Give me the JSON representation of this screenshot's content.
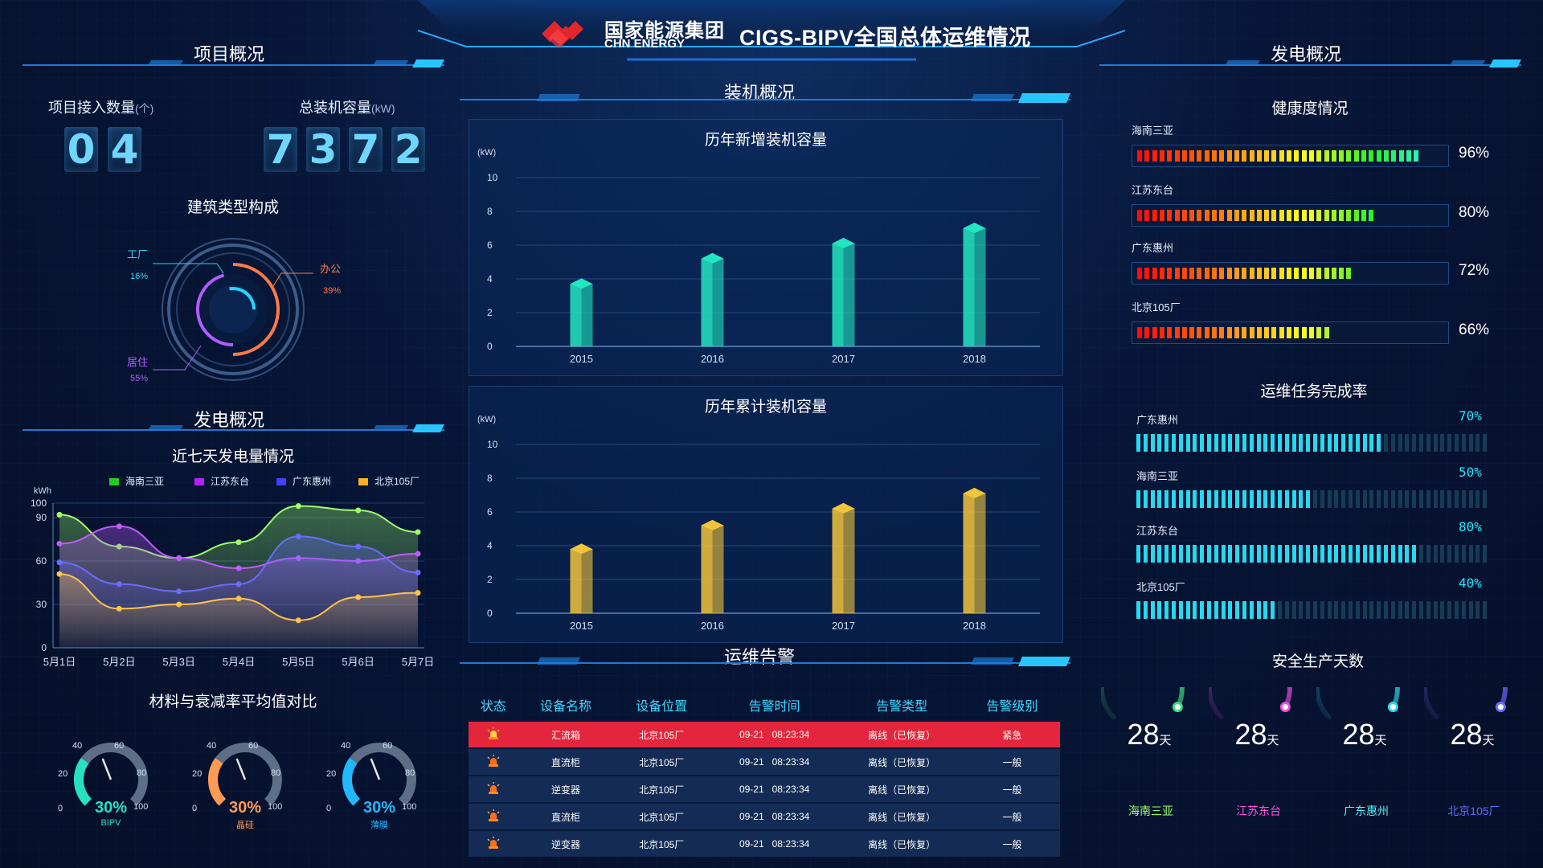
{
  "header": {
    "brand_cn": "国家能源集团",
    "brand_en": "CHN ENERGY",
    "title": "CIGS-BIPV全国总体运维情况"
  },
  "left": {
    "project_overview_title": "项目概况",
    "project_count_label": "项目接入数量",
    "project_count_unit": "(个)",
    "project_count_digits": [
      "0",
      "4"
    ],
    "capacity_label": "总装机容量",
    "capacity_unit": "(kW)",
    "capacity_digits": [
      "7",
      "3",
      "7",
      "2"
    ],
    "building_type_title": "建筑类型构成",
    "building_types": [
      {
        "name": "工厂",
        "percent": 16,
        "pct_label": "16%",
        "color": "#27d6ff"
      },
      {
        "name": "办公",
        "percent": 39,
        "pct_label": "39%",
        "color": "#ff7a45"
      },
      {
        "name": "居住",
        "percent": 55,
        "pct_label": "55%",
        "color": "#b15cff"
      }
    ],
    "power_overview_title": "发电概况",
    "week_chart_title": "近七天发电量情况",
    "materials_title": "材料与衰减率平均值对比",
    "gauges": [
      {
        "name": "BIPV",
        "value": 30,
        "pct_label": "30%",
        "color": "#26e0c2"
      },
      {
        "name": "晶硅",
        "value": 30,
        "pct_label": "30%",
        "color": "#ff9a55"
      },
      {
        "name": "薄膜",
        "value": 30,
        "pct_label": "30%",
        "color": "#22b8ff"
      }
    ],
    "gauge_ticks": [
      "0",
      "20",
      "40",
      "60",
      "80",
      "100"
    ]
  },
  "center": {
    "install_title": "装机概况",
    "alarm_title": "运维告警",
    "alarm_headers": [
      "状态",
      "设备名称",
      "设备位置",
      "告警时间",
      "告警类型",
      "告警级别"
    ],
    "alarms": [
      {
        "device": "汇流箱",
        "location": "北京105厂",
        "time": "09-21   08:23:34",
        "type": "离线（已恢复）",
        "level": "紧急",
        "urgent": true
      },
      {
        "device": "直流柜",
        "location": "北京105厂",
        "time": "09-21   08:23:34",
        "type": "离线（已恢复）",
        "level": "一般",
        "urgent": false
      },
      {
        "device": "逆变器",
        "location": "北京105厂",
        "time": "09-21   08:23:34",
        "type": "离线（已恢复）",
        "level": "一般",
        "urgent": false
      },
      {
        "device": "直流柜",
        "location": "北京105厂",
        "time": "09-21   08:23:34",
        "type": "离线（已恢复）",
        "level": "一般",
        "urgent": false
      },
      {
        "device": "逆变器",
        "location": "北京105厂",
        "time": "09-21   08:23:34",
        "type": "离线（已恢复）",
        "level": "一般",
        "urgent": false
      }
    ]
  },
  "right": {
    "power_title": "发电概况",
    "health_title": "健康度情况",
    "health": [
      {
        "name": "海南三亚",
        "value": 96,
        "label": "96%"
      },
      {
        "name": "江苏东台",
        "value": 80,
        "label": "80%"
      },
      {
        "name": "广东惠州",
        "value": 72,
        "label": "72%"
      },
      {
        "name": "北京105厂",
        "value": 66,
        "label": "66%"
      }
    ],
    "task_title": "运维任务完成率",
    "tasks": [
      {
        "name": "广东惠州",
        "value": 70,
        "label": "70%"
      },
      {
        "name": "海南三亚",
        "value": 50,
        "label": "50%"
      },
      {
        "name": "江苏东台",
        "value": 80,
        "label": "80%"
      },
      {
        "name": "北京105厂",
        "value": 40,
        "label": "40%"
      }
    ],
    "safety_title": "安全生产天数",
    "safety_unit": "天",
    "safety": [
      {
        "name": "海南三亚",
        "days": "28",
        "color": "#9dff6a",
        "ring": "#3ddc84"
      },
      {
        "name": "江苏东台",
        "days": "28",
        "color": "#ff4fd8",
        "ring": "#e24fe0"
      },
      {
        "name": "广东惠州",
        "days": "28",
        "color": "#56f0ff",
        "ring": "#2fd9e8"
      },
      {
        "name": "北京105厂",
        "days": "28",
        "color": "#5c6cff",
        "ring": "#6b6bff"
      }
    ]
  },
  "chart_data": [
    {
      "type": "bar",
      "title": "历年新增装机容量",
      "ylabel": "(kW)",
      "categories": [
        "2015",
        "2016",
        "2017",
        "2018"
      ],
      "values": [
        3.7,
        5.2,
        6.1,
        7.0
      ],
      "ylim": [
        0,
        10
      ],
      "yticks": [
        "0",
        "2",
        "4",
        "6",
        "8",
        "10"
      ],
      "color": "#22e6c0"
    },
    {
      "type": "bar",
      "title": "历年累计装机容量",
      "ylabel": "(kW)",
      "categories": [
        "2015",
        "2016",
        "2017",
        "2018"
      ],
      "values": [
        3.8,
        5.2,
        6.2,
        7.1
      ],
      "ylim": [
        0,
        10
      ],
      "yticks": [
        "0",
        "2",
        "4",
        "6",
        "8",
        "10"
      ],
      "color": "#f1c43a"
    },
    {
      "type": "area",
      "title": "近七天发电量情况",
      "ylabel": "kWh",
      "categories": [
        "5月1日",
        "5月2日",
        "5月3日",
        "5月4日",
        "5月5日",
        "5月6日",
        "5月7日"
      ],
      "yticks": [
        "0",
        "30",
        "60",
        "90",
        "100"
      ],
      "ylim": [
        0,
        100
      ],
      "series": [
        {
          "name": "海南三亚",
          "color": "#9dff6a",
          "legend_color": "#20d020",
          "values": [
            92,
            70,
            62,
            73,
            98,
            95,
            80
          ]
        },
        {
          "name": "江苏东台",
          "color": "#c15bff",
          "legend_color": "#b620ff",
          "values": [
            72,
            84,
            62,
            55,
            62,
            60,
            65
          ]
        },
        {
          "name": "广东惠州",
          "color": "#6a6cff",
          "legend_color": "#4040ff",
          "values": [
            59,
            44,
            39,
            44,
            77,
            70,
            52
          ]
        },
        {
          "name": "北京105厂",
          "color": "#ffc24a",
          "legend_color": "#ffb020",
          "values": [
            51,
            27,
            30,
            34,
            19,
            35,
            38
          ]
        }
      ]
    }
  ]
}
